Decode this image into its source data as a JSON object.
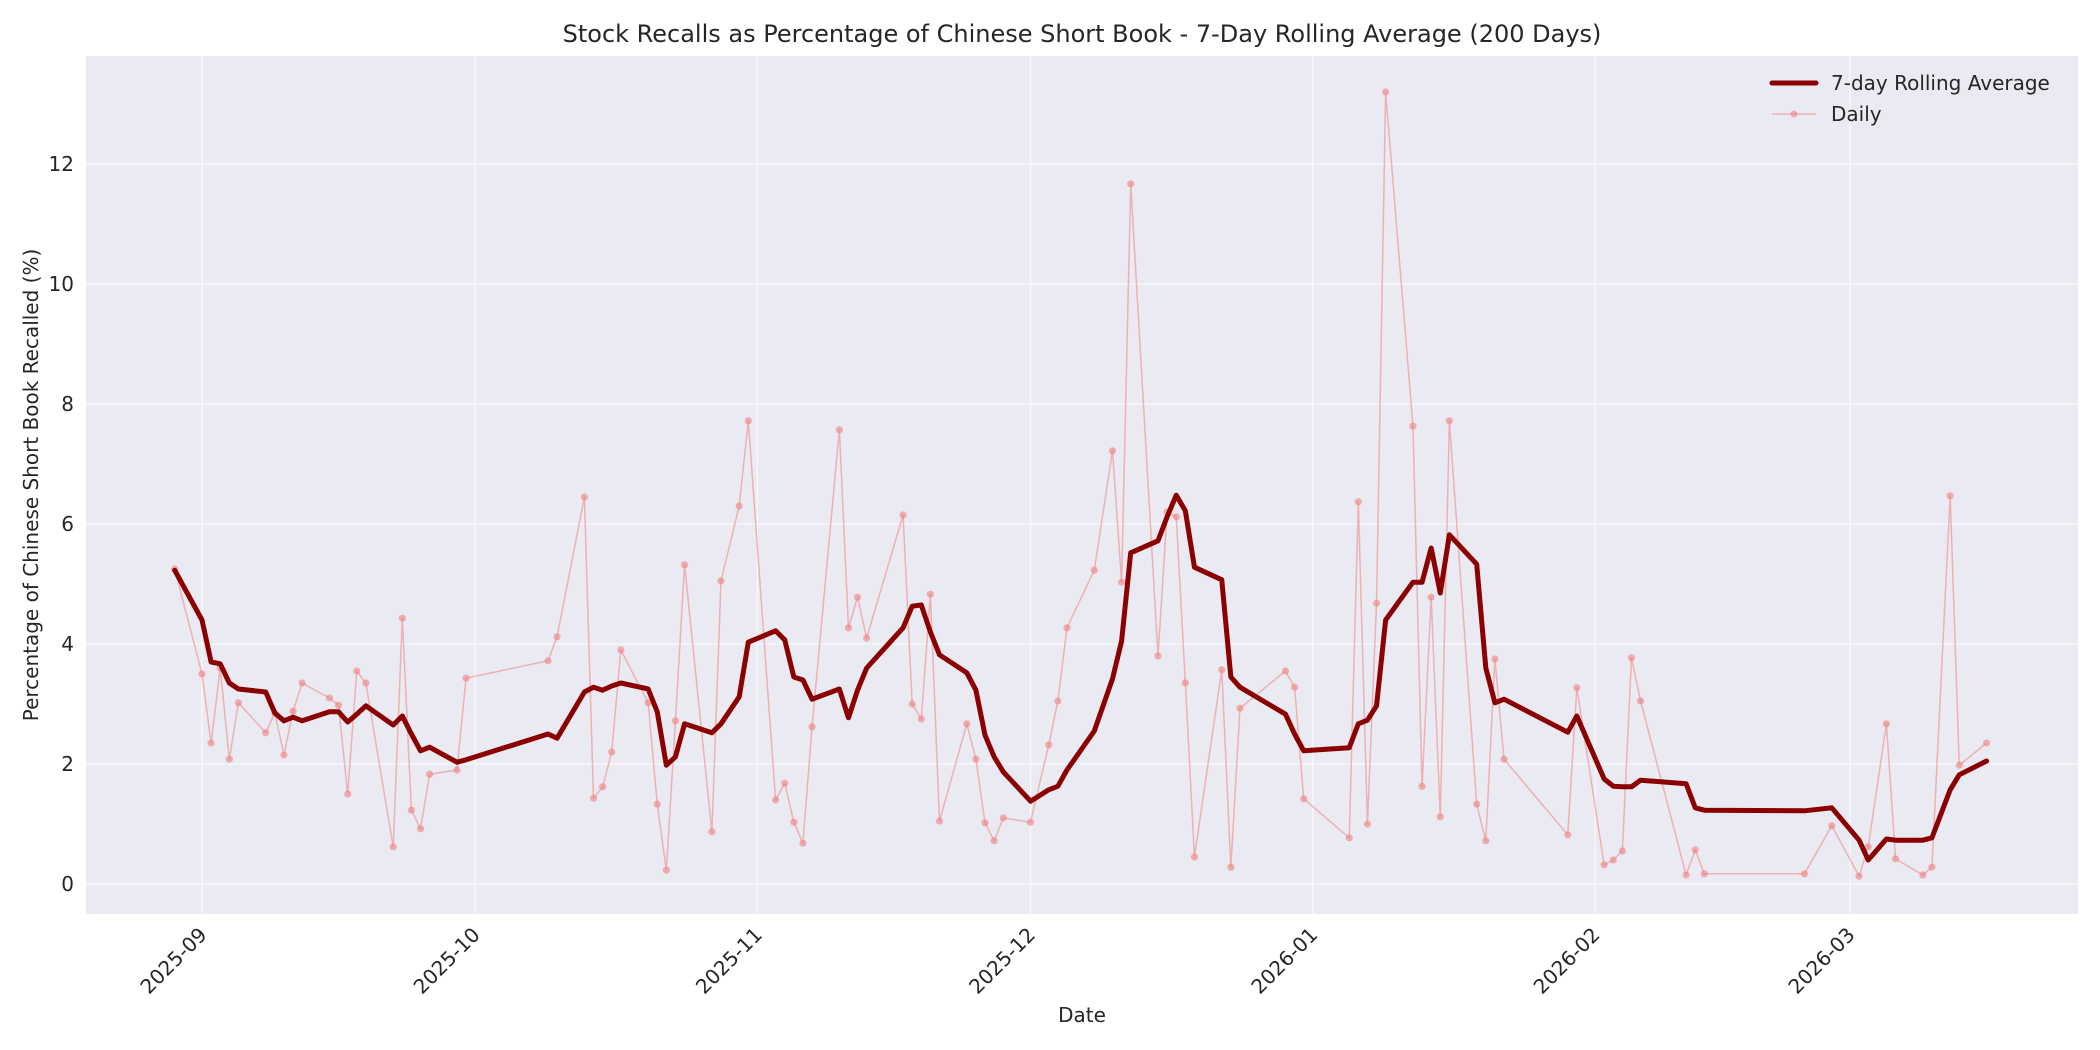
{
  "chart_data": {
    "type": "line",
    "title": "Stock Recalls as Percentage of Chinese Short Book - 7-Day Rolling Average (200 Days)",
    "xlabel": "Date",
    "ylabel": "Percentage of Chinese Short Book Recalled (%)",
    "ylim": [
      -0.5,
      13.8
    ],
    "xlim": [
      "2025-08-19",
      "2026-03-26"
    ],
    "yticks": [
      0,
      2,
      4,
      6,
      8,
      10,
      12
    ],
    "xticks": [
      "2025-09",
      "2025-10",
      "2025-11",
      "2025-12",
      "2026-01",
      "2026-02",
      "2026-03"
    ],
    "grid": true,
    "legend_position": "upper right",
    "background": "#eaeaf2",
    "series": [
      {
        "name": "7-day Rolling Average",
        "color": "#8b0000",
        "line_width": 5
      },
      {
        "name": "Daily",
        "color": "#f08080",
        "line_width": 1.5,
        "marker": "circle",
        "alpha": 0.5
      }
    ],
    "x": [
      "2025-08-29",
      "2025-09-01",
      "2025-09-02",
      "2025-09-03",
      "2025-09-04",
      "2025-09-05",
      "2025-09-08",
      "2025-09-09",
      "2025-09-10",
      "2025-09-11",
      "2025-09-12",
      "2025-09-15",
      "2025-09-16",
      "2025-09-17",
      "2025-09-18",
      "2025-09-19",
      "2025-09-22",
      "2025-09-23",
      "2025-09-24",
      "2025-09-25",
      "2025-09-26",
      "2025-09-29",
      "2025-09-30",
      "2025-10-09",
      "2025-10-10",
      "2025-10-13",
      "2025-10-14",
      "2025-10-15",
      "2025-10-16",
      "2025-10-17",
      "2025-10-20",
      "2025-10-21",
      "2025-10-22",
      "2025-10-23",
      "2025-10-24",
      "2025-10-27",
      "2025-10-28",
      "2025-10-30",
      "2025-10-31",
      "2025-11-03",
      "2025-11-04",
      "2025-11-05",
      "2025-11-06",
      "2025-11-07",
      "2025-11-10",
      "2025-11-11",
      "2025-11-12",
      "2025-11-13",
      "2025-11-17",
      "2025-11-18",
      "2025-11-19",
      "2025-11-20",
      "2025-11-21",
      "2025-11-24",
      "2025-11-25",
      "2025-11-26",
      "2025-11-27",
      "2025-11-28",
      "2025-12-01",
      "2025-12-03",
      "2025-12-04",
      "2025-12-05",
      "2025-12-08",
      "2025-12-10",
      "2025-12-11",
      "2025-12-12",
      "2025-12-15",
      "2025-12-16",
      "2025-12-17",
      "2025-12-18",
      "2025-12-19",
      "2025-12-22",
      "2025-12-23",
      "2025-12-24",
      "2025-12-29",
      "2025-12-30",
      "2025-12-31",
      "2026-01-05",
      "2026-01-06",
      "2026-01-07",
      "2026-01-08",
      "2026-01-09",
      "2026-01-12",
      "2026-01-13",
      "2026-01-14",
      "2026-01-15",
      "2026-01-16",
      "2026-01-19",
      "2026-01-20",
      "2026-01-21",
      "2026-01-22",
      "2026-01-29",
      "2026-01-30",
      "2026-02-02",
      "2026-02-03",
      "2026-02-04",
      "2026-02-05",
      "2026-02-06",
      "2026-02-11",
      "2026-02-12",
      "2026-02-13",
      "2026-02-24",
      "2026-02-27",
      "2026-03-02",
      "2026-03-03",
      "2026-03-05",
      "2026-03-06",
      "2026-03-09",
      "2026-03-10",
      "2026-03-12",
      "2026-03-13",
      "2026-03-16"
    ],
    "daily": [
      5.25,
      3.5,
      2.35,
      3.6,
      2.08,
      3.02,
      2.52,
      2.85,
      2.15,
      2.88,
      3.35,
      3.1,
      2.98,
      1.5,
      3.55,
      3.35,
      0.62,
      4.43,
      1.23,
      0.92,
      1.83,
      1.9,
      3.43,
      3.72,
      4.12,
      6.45,
      1.43,
      1.62,
      2.2,
      3.9,
      3.02,
      1.33,
      0.23,
      2.72,
      5.32,
      0.87,
      5.05,
      6.3,
      7.72,
      1.4,
      1.68,
      1.03,
      0.68,
      2.62,
      7.57,
      4.27,
      4.78,
      4.1,
      6.15,
      3.0,
      2.75,
      4.83,
      1.05,
      2.67,
      2.08,
      1.02,
      0.72,
      1.1,
      1.03,
      2.32,
      3.05,
      4.27,
      5.23,
      7.22,
      5.03,
      11.67,
      3.8,
      6.2,
      6.12,
      3.35,
      0.45,
      3.57,
      0.28,
      2.93,
      3.55,
      3.28,
      1.42,
      0.77,
      6.37,
      1.0,
      4.68,
      13.2,
      7.63,
      1.63,
      4.78,
      1.12,
      7.72,
      1.33,
      0.72,
      3.75,
      2.08,
      0.82,
      3.27,
      0.32,
      0.4,
      0.55,
      3.77,
      3.05,
      0.15,
      0.57,
      0.17,
      0.17,
      0.97,
      0.13,
      0.62,
      2.67,
      0.42,
      0.15,
      0.28,
      6.47,
      1.98,
      2.35
    ],
    "rolling_avg": [
      5.23,
      4.4,
      3.7,
      3.67,
      3.35,
      3.25,
      3.2,
      2.85,
      2.72,
      2.78,
      2.72,
      2.87,
      2.87,
      2.7,
      2.83,
      2.97,
      2.65,
      2.8,
      2.5,
      2.22,
      2.28,
      2.03,
      2.07,
      2.5,
      2.43,
      3.2,
      3.28,
      3.23,
      3.3,
      3.35,
      3.25,
      2.87,
      1.98,
      2.12,
      2.67,
      2.52,
      2.67,
      3.12,
      4.03,
      4.22,
      4.07,
      3.45,
      3.4,
      3.08,
      3.25,
      2.77,
      3.23,
      3.6,
      4.27,
      4.63,
      4.65,
      4.2,
      3.82,
      3.52,
      3.23,
      2.48,
      2.12,
      1.87,
      1.38,
      1.57,
      1.63,
      1.9,
      2.55,
      3.42,
      4.05,
      5.52,
      5.72,
      6.12,
      6.48,
      6.22,
      5.28,
      5.07,
      3.45,
      3.28,
      2.83,
      2.5,
      2.22,
      2.27,
      2.67,
      2.73,
      2.97,
      4.4,
      5.03,
      5.03,
      5.6,
      4.85,
      5.82,
      5.33,
      3.6,
      3.02,
      3.08,
      2.53,
      2.8,
      1.75,
      1.63,
      1.62,
      1.62,
      1.73,
      1.67,
      1.27,
      1.23,
      1.22,
      1.27,
      0.73,
      0.4,
      0.75,
      0.73,
      0.73,
      0.77,
      1.57,
      1.82,
      2.05
    ]
  },
  "legend": {
    "items": [
      {
        "label": "7-day Rolling Average"
      },
      {
        "label": "Daily"
      }
    ]
  }
}
